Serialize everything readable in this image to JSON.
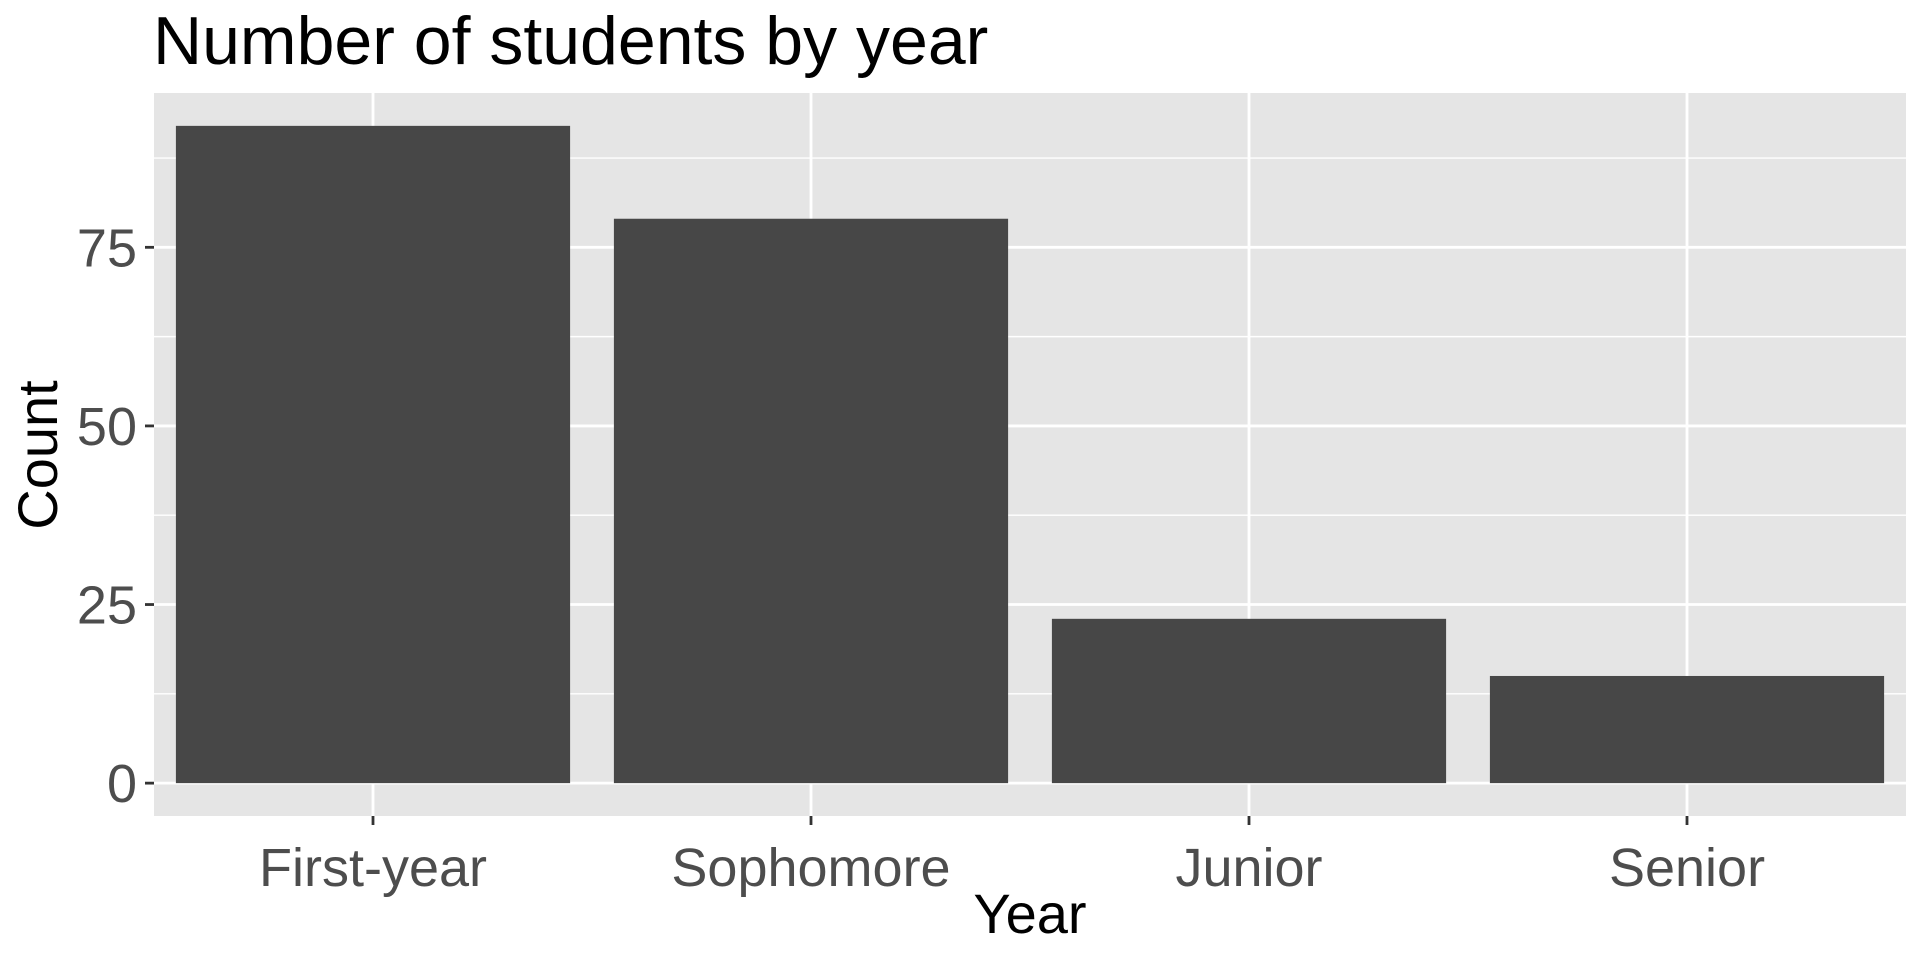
{
  "chart_data": {
    "type": "bar",
    "title": "Number of students by year",
    "xlabel": "Year",
    "ylabel": "Count",
    "categories": [
      "First-year",
      "Sophomore",
      "Junior",
      "Senior"
    ],
    "values": [
      92,
      79,
      23,
      15
    ],
    "ylim": [
      -4.6,
      96.6
    ],
    "yticks": [
      0,
      25,
      50,
      75
    ],
    "grid": true,
    "legend": "none",
    "colors": {
      "bar": "#474747",
      "panel": "#e5e5e5",
      "grid": "#ffffff",
      "tick": "#4d4d4d"
    }
  }
}
